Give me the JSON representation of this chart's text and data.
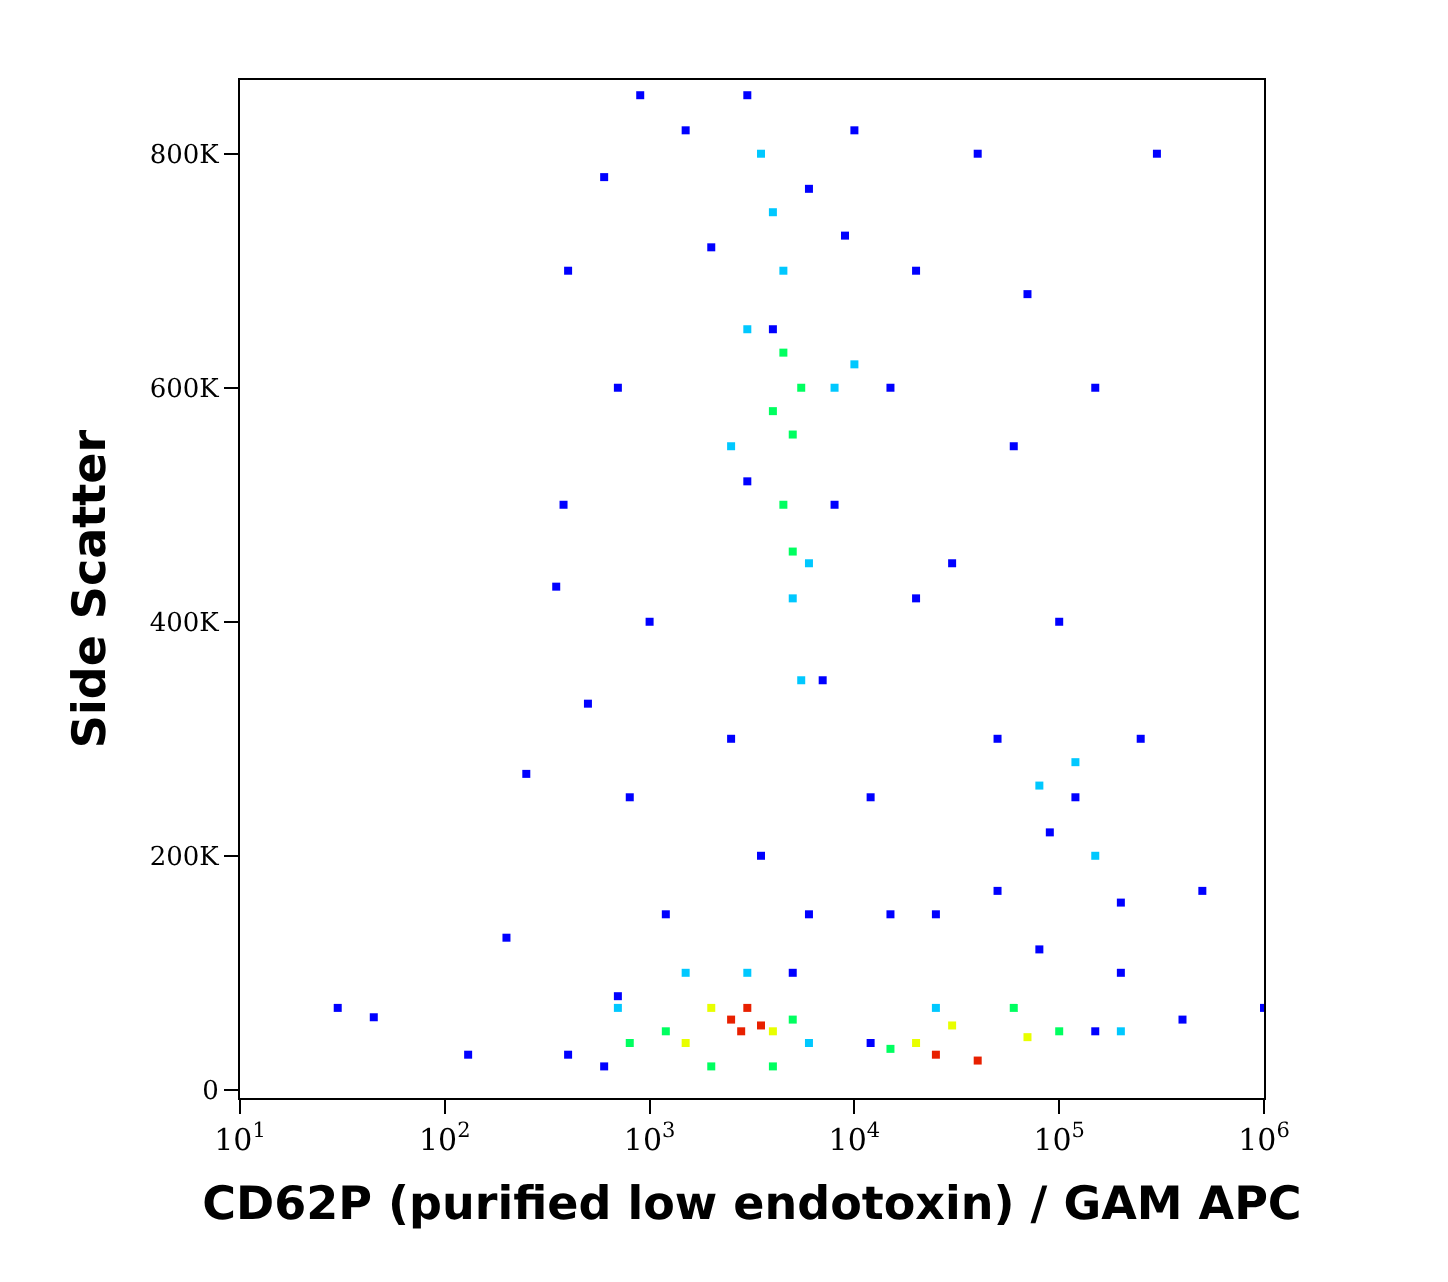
{
  "chart_data": {
    "type": "scatter",
    "xlabel": "CD62P (purified low endotoxin) / GAM APC",
    "ylabel": "Side Scatter",
    "log": "x",
    "marker": "square",
    "xlim": [
      10,
      1000000
    ],
    "ylim": [
      -7000,
      863000
    ],
    "xticks": [
      {
        "value": 10,
        "label": "10$^{1}$"
      },
      {
        "value": 100,
        "label": "10$^{2}$"
      },
      {
        "value": 1000,
        "label": "10$^{3}$"
      },
      {
        "value": 10000,
        "label": "10$^{4}$"
      },
      {
        "value": 100000,
        "label": "10$^{5}$"
      },
      {
        "value": 1000000,
        "label": "10$^{6}$"
      }
    ],
    "yticks": [
      0,
      {
        "value": 200000,
        "label": "200K"
      },
      {
        "value": 400000,
        "label": "400K"
      },
      {
        "value": 600000,
        "label": "600K"
      },
      {
        "value": 800000,
        "label": "800K"
      }
    ],
    "series": [
      {
        "color": "#0000ff",
        "x": [
          30,
          45,
          130,
          200,
          250,
          350,
          380,
          400,
          500,
          600,
          700,
          800,
          900,
          1000,
          1200,
          1500,
          2000,
          2500,
          3000,
          3500,
          4000,
          5000,
          6000,
          7000,
          8000,
          10000,
          12000,
          15000,
          20000,
          25000,
          30000,
          40000,
          50000,
          60000,
          80000,
          100000,
          120000,
          150000,
          200000,
          250000,
          300000,
          500000,
          400000,
          1000000,
          700,
          400,
          600,
          150000,
          90000,
          200000,
          6000,
          15000,
          3000,
          9000,
          20000,
          70000,
          12000,
          50000
        ],
        "values": [
          70000,
          62000,
          30000,
          130000,
          270000,
          430000,
          500000,
          700000,
          330000,
          780000,
          600000,
          250000,
          850000,
          400000,
          150000,
          820000,
          720000,
          300000,
          850000,
          200000,
          650000,
          100000,
          770000,
          350000,
          500000,
          820000,
          250000,
          600000,
          700000,
          150000,
          450000,
          800000,
          300000,
          550000,
          120000,
          400000,
          250000,
          600000,
          160000,
          300000,
          800000,
          170000,
          60000,
          70000,
          80000,
          30000,
          20000,
          50000,
          220000,
          100000,
          150000,
          150000,
          520000,
          730000,
          420000,
          680000,
          40000,
          170000
        ]
      },
      {
        "color": "#00c8ff",
        "x": [
          3500,
          4500,
          5000,
          6000,
          2500,
          8000,
          10000,
          3000,
          120000,
          80000,
          150000,
          4000,
          5500,
          1500,
          700,
          200000,
          6000,
          25000,
          3000
        ],
        "values": [
          800000,
          700000,
          420000,
          450000,
          550000,
          600000,
          620000,
          650000,
          280000,
          260000,
          200000,
          750000,
          350000,
          100000,
          70000,
          50000,
          40000,
          70000,
          100000
        ]
      },
      {
        "color": "#00ff60",
        "x": [
          4500,
          5000,
          4500,
          5000,
          5500,
          4000,
          1200,
          5000,
          2000,
          100000,
          60000,
          15000,
          800,
          4000
        ],
        "values": [
          630000,
          560000,
          500000,
          460000,
          600000,
          580000,
          50000,
          60000,
          20000,
          50000,
          70000,
          35000,
          40000,
          20000
        ]
      },
      {
        "color": "#e8ff00",
        "x": [
          2000,
          4000,
          20000,
          70000,
          1500,
          30000
        ],
        "values": [
          70000,
          50000,
          40000,
          45000,
          40000,
          55000
        ]
      },
      {
        "color": "#e82000",
        "x": [
          2500,
          3000,
          3500,
          25000,
          40000,
          2800
        ],
        "values": [
          60000,
          70000,
          55000,
          30000,
          25000,
          50000
        ]
      }
    ]
  }
}
